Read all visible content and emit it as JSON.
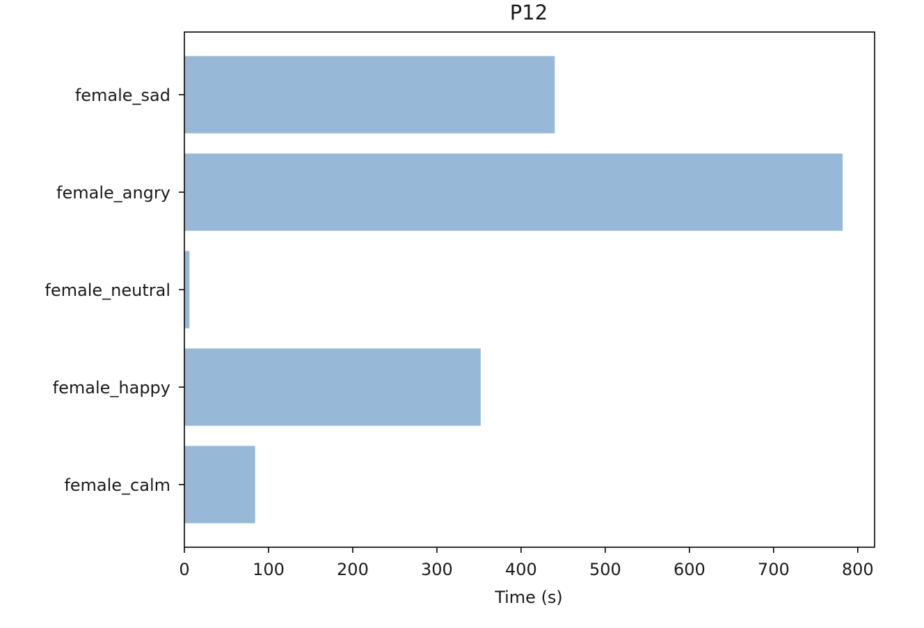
{
  "chart_data": {
    "type": "bar",
    "orientation": "horizontal",
    "title": "P12",
    "xlabel": "Time (s)",
    "ylabel": "",
    "categories": [
      "female_sad",
      "female_angry",
      "female_neutral",
      "female_happy",
      "female_calm"
    ],
    "values": [
      440,
      782,
      6,
      352,
      84
    ],
    "xlim": [
      0,
      820
    ],
    "xticks": [
      0,
      100,
      200,
      300,
      400,
      500,
      600,
      700,
      800
    ],
    "grid": false,
    "legend": "none",
    "bar_color": "#97b8d6"
  }
}
